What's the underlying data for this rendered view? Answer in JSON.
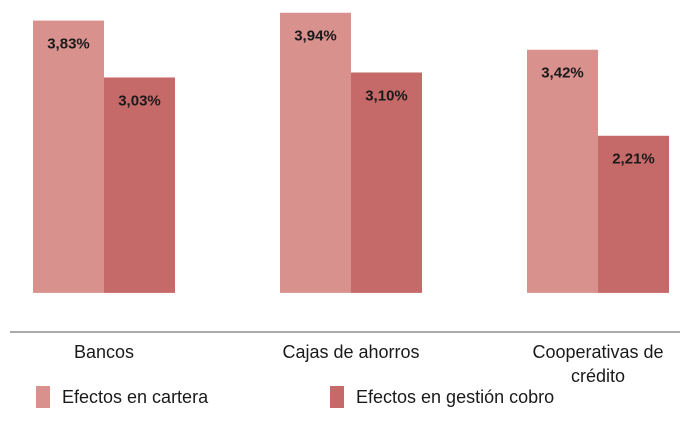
{
  "chart_data": {
    "type": "bar",
    "categories": [
      "Bancos",
      "Cajas de ahorros",
      "Cooperativas de crédito"
    ],
    "series": [
      {
        "name": "Efectos en cartera",
        "color": "#d9918e",
        "values": [
          3.83,
          3.94,
          3.42
        ],
        "value_labels": [
          "3,83%",
          "3,94%",
          "3,42%"
        ]
      },
      {
        "name": "Efectos en gestión cobro",
        "color": "#c66a69",
        "values": [
          3.03,
          3.1,
          2.21
        ],
        "value_labels": [
          "3,03%",
          "3,10%",
          "2,21%"
        ]
      }
    ],
    "ylim": [
      -0.55,
      4.0
    ]
  }
}
